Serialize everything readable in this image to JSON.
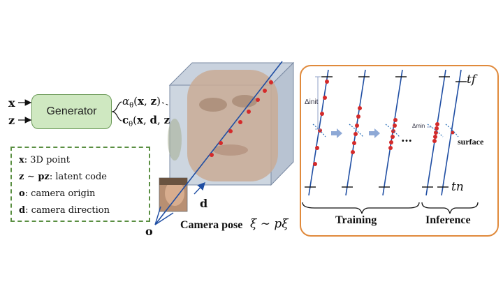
{
  "generator": {
    "label": "Generator",
    "inputs": [
      "x",
      "z"
    ],
    "outputs": [
      "αθ(x, z)",
      "cθ(x, d, z)"
    ]
  },
  "legend": {
    "items": [
      {
        "sym": "x",
        "text": ": 3D point"
      },
      {
        "sym": "z ∼ pz",
        "text": ": latent code"
      },
      {
        "sym": "o",
        "text": ": camera origin"
      },
      {
        "sym": "d",
        "text": ": camera direction"
      }
    ]
  },
  "scene": {
    "origin_label": "o",
    "direction_label": "d",
    "camera_pose_label": "Camera pose",
    "camera_pose_math": "ξ ∼ pξ"
  },
  "panel": {
    "delta_init": "Δinit",
    "delta_min": "Δmin",
    "ellipsis": "…",
    "surface_label": "surface",
    "t_far": "tf",
    "t_near": "tn",
    "training_label": "Training",
    "inference_label": "Inference"
  },
  "colors": {
    "generator_fill": "#cfe8c1",
    "legend_border": "#5a8f42",
    "panel_border": "#e08a3c",
    "ray": "#1f4ea3",
    "sample_point": "#d42a2a"
  }
}
